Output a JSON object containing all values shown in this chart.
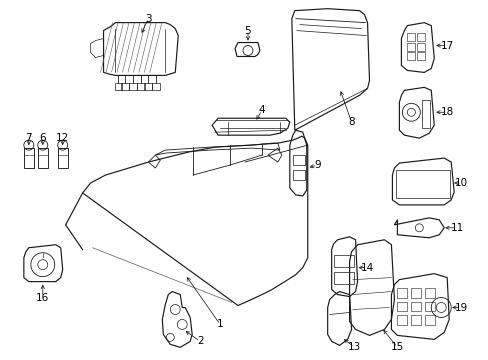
{
  "background": "#ffffff",
  "line_color": "#1a1a1a",
  "label_color": "#000000",
  "figsize": [
    4.89,
    3.6
  ],
  "dpi": 100,
  "label_fontsize": 7.5
}
